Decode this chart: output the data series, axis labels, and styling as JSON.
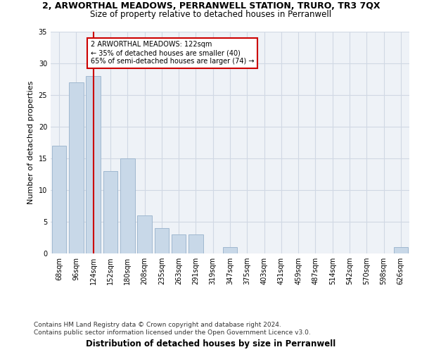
{
  "title": "2, ARWORTHAL MEADOWS, PERRANWELL STATION, TRURO, TR3 7QX",
  "subtitle": "Size of property relative to detached houses in Perranwell",
  "xlabel": "Distribution of detached houses by size in Perranwell",
  "ylabel": "Number of detached properties",
  "categories": [
    "68sqm",
    "96sqm",
    "124sqm",
    "152sqm",
    "180sqm",
    "208sqm",
    "235sqm",
    "263sqm",
    "291sqm",
    "319sqm",
    "347sqm",
    "375sqm",
    "403sqm",
    "431sqm",
    "459sqm",
    "487sqm",
    "514sqm",
    "542sqm",
    "570sqm",
    "598sqm",
    "626sqm"
  ],
  "values": [
    17,
    27,
    28,
    13,
    15,
    6,
    4,
    3,
    3,
    0,
    1,
    0,
    0,
    0,
    0,
    0,
    0,
    0,
    0,
    0,
    1
  ],
  "bar_color": "#c8d8e8",
  "bar_edge_color": "#a0b8d0",
  "vline_x_index": 2,
  "vline_color": "#cc0000",
  "annotation_text": "2 ARWORTHAL MEADOWS: 122sqm\n← 35% of detached houses are smaller (40)\n65% of semi-detached houses are larger (74) →",
  "annotation_box_color": "#ffffff",
  "annotation_box_edge": "#cc0000",
  "ylim": [
    0,
    35
  ],
  "yticks": [
    0,
    5,
    10,
    15,
    20,
    25,
    30,
    35
  ],
  "footer": "Contains HM Land Registry data © Crown copyright and database right 2024.\nContains public sector information licensed under the Open Government Licence v3.0.",
  "bg_color": "#eef2f7",
  "grid_color": "#d0d8e4",
  "title_fontsize": 9,
  "subtitle_fontsize": 8.5,
  "ylabel_fontsize": 8,
  "xlabel_fontsize": 8.5,
  "footer_fontsize": 6.5,
  "tick_fontsize": 7
}
